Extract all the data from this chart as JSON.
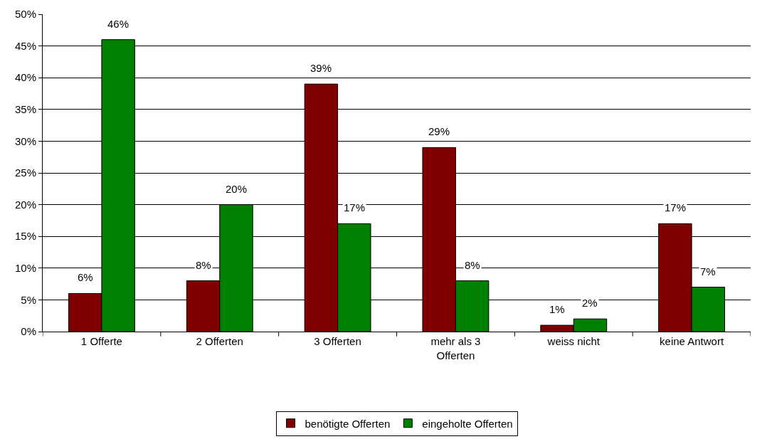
{
  "chart_data": {
    "type": "bar",
    "categories": [
      "1 Offerte",
      "2 Offerten",
      "3 Offerten",
      "mehr als 3 Offerten",
      "weiss nicht",
      "keine Antwort"
    ],
    "series": [
      {
        "name": "benötigte Offerten",
        "color": "#800000",
        "values": [
          6,
          8,
          39,
          29,
          1,
          17
        ],
        "value_labels": [
          "6%",
          "8%",
          "39%",
          "29%",
          "1%",
          "17%"
        ]
      },
      {
        "name": "eingeholte Offerten",
        "color": "#008000",
        "values": [
          46,
          20,
          17,
          8,
          2,
          7
        ],
        "value_labels": [
          "46%",
          "20%",
          "17%",
          "8%",
          "2%",
          "7%"
        ]
      }
    ],
    "ylim": [
      0,
      50
    ],
    "yticks": [
      {
        "value": 0,
        "label": "0%"
      },
      {
        "value": 5,
        "label": "5%"
      },
      {
        "value": 10,
        "label": "10%"
      },
      {
        "value": 15,
        "label": "15%"
      },
      {
        "value": 20,
        "label": "20%"
      },
      {
        "value": 25,
        "label": "25%"
      },
      {
        "value": 30,
        "label": "30%"
      },
      {
        "value": 35,
        "label": "35%"
      },
      {
        "value": 40,
        "label": "40%"
      },
      {
        "value": 45,
        "label": "45%"
      },
      {
        "value": 50,
        "label": "50%"
      }
    ],
    "grid": "y",
    "legend": "bottom"
  }
}
